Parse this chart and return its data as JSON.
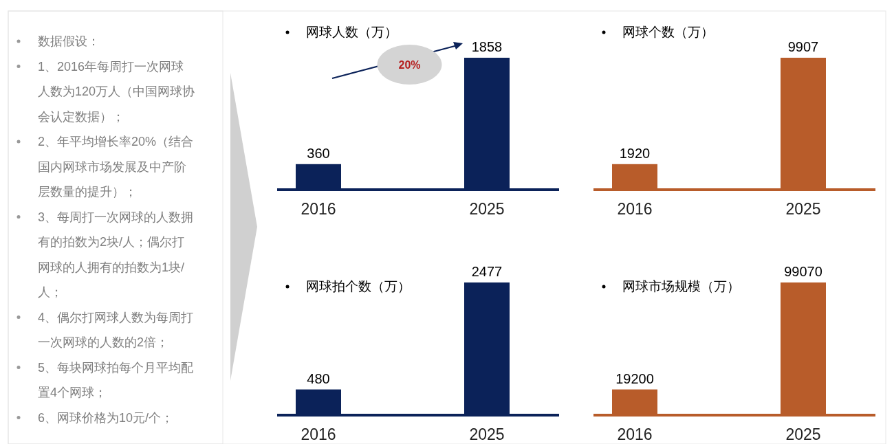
{
  "chart_data": [
    {
      "type": "other",
      "annotations": [
        "数据假设：",
        "1、2016年每周打一次网球人数为120万人（中国网球协会认定数据）；",
        "2、年平均增长率20%（结合国内网球市场发展及中产阶层数量的提升）；",
        "3、每周打一次网球的人数拥有的拍数为2块/人；偶尔打网球的人拥有的拍数为1块/人；",
        "4、偶尔打网球人数为每周打一次网球的人数的2倍；",
        "5、每块网球拍每个月平均配置4个网球；",
        "6、网球价格为10元/个；"
      ]
    },
    {
      "type": "bar",
      "title": "网球人数（万）",
      "categories": [
        "2016",
        "2025"
      ],
      "values": [
        360,
        1858
      ],
      "color": "#0b2259",
      "data_labels": true,
      "annotations": [
        "20%"
      ]
    },
    {
      "type": "bar",
      "title": "网球个数（万）",
      "categories": [
        "2016",
        "2025"
      ],
      "values": [
        1920,
        9907
      ],
      "color": "#b85c2a",
      "data_labels": true
    },
    {
      "type": "bar",
      "title": "网球拍个数（万）",
      "categories": [
        "2016",
        "2025"
      ],
      "values": [
        480,
        2477
      ],
      "color": "#0b2259",
      "data_labels": true
    },
    {
      "type": "bar",
      "title": "网球市场规模（万）",
      "categories": [
        "2016",
        "2025"
      ],
      "values": [
        19200,
        99070
      ],
      "color": "#b85c2a",
      "data_labels": true
    }
  ]
}
